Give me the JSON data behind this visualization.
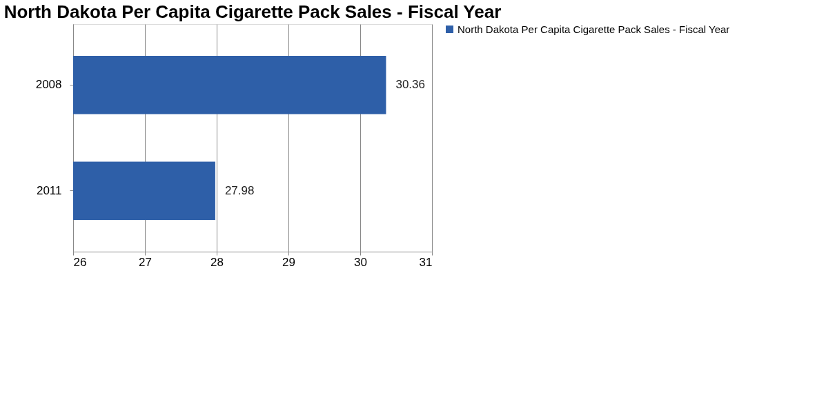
{
  "chart_data": {
    "type": "bar",
    "orientation": "horizontal",
    "title": "North Dakota Per Capita Cigarette Pack Sales - Fiscal Year",
    "categories": [
      "2008",
      "2011"
    ],
    "series": [
      {
        "name": "North Dakota Per Capita Cigarette Pack Sales - Fiscal Year",
        "color": "#2e5fa8",
        "values": [
          30.36,
          27.98
        ]
      }
    ],
    "xlim": [
      26,
      31
    ],
    "xticks": [
      26,
      27,
      28,
      29,
      30,
      31
    ],
    "grid": "x",
    "legend": "right",
    "data_labels": true
  }
}
